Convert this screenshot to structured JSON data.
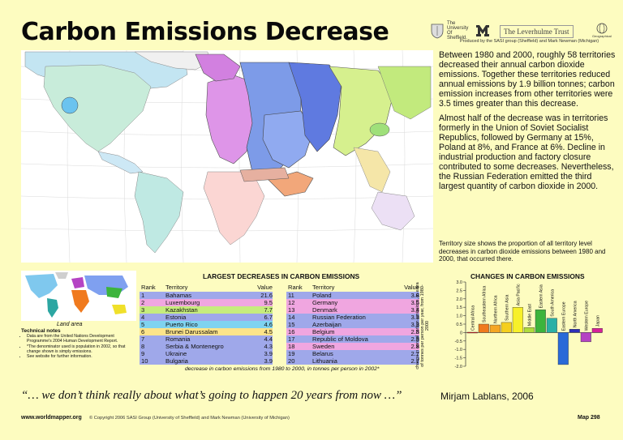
{
  "title": "Carbon Emissions Decrease",
  "logos": {
    "sheffield": "The University Of Sheffield.",
    "leverhulme": "The Leverhulme Trust",
    "geo": "Geographical"
  },
  "credit": "Produced by the SASI group (Sheffield) and Mark Newman (Michigan)",
  "intro": [
    "Between 1980 and 2000, roughly 58 territories decreased their annual carbon dioxide emissions. Together these territories reduced annual emissions by 1.9 billion tonnes; carbon emission increases from other territories were 3.5 times greater than this decrease.",
    "Almost half of the decrease was in territories formerly in the Union of Soviet Socialist Republics, followed by Germany at 15%, Poland at 8%, and France at 6%. Decline in industrial production and factory closure contributed to some decreases. Nevertheless, the Russian Federation emitted the third largest quantity of carbon dioxide in 2000."
  ],
  "territory_note": "Territory size shows the proportion of all territory level decreases in carbon dioxide emissions between 1980 and 2000, that occurred there.",
  "land_area_label": "Land area",
  "tech_notes": {
    "heading": "Technical notes",
    "items": [
      "Data are from the United Nations Development Programme's 2004 Human Development Report.",
      "*The denominator used is population in 2002, so that change shown is simply emissions.",
      "See website for further information."
    ]
  },
  "largest": {
    "title": "LARGEST DECREASES IN CARBON EMISSIONS",
    "headers": [
      "Rank",
      "Territory",
      "Value"
    ],
    "left": [
      {
        "rank": "1",
        "territory": "Bahamas",
        "value": "21.6",
        "color": "#9fa8ea"
      },
      {
        "rank": "2",
        "territory": "Luxembourg",
        "value": "9.5",
        "color": "#f0a6e0"
      },
      {
        "rank": "3",
        "territory": "Kazakhstan",
        "value": "7.7",
        "color": "#c6ec7d"
      },
      {
        "rank": "4",
        "territory": "Estonia",
        "value": "6.7",
        "color": "#9fa8ea"
      },
      {
        "rank": "5",
        "territory": "Puerto Rico",
        "value": "4.6",
        "color": "#7fd3f0"
      },
      {
        "rank": "6",
        "territory": "Brunei Darussalam",
        "value": "4.5",
        "color": "#fde48a"
      },
      {
        "rank": "7",
        "territory": "Romania",
        "value": "4.4",
        "color": "#9fa8ea"
      },
      {
        "rank": "8",
        "territory": "Serbia & Montenegro",
        "value": "4.3",
        "color": "#9fa8ea"
      },
      {
        "rank": "9",
        "territory": "Ukraine",
        "value": "3.9",
        "color": "#9fa8ea"
      },
      {
        "rank": "10",
        "territory": "Bulgaria",
        "value": "3.9",
        "color": "#9fa8ea"
      }
    ],
    "right": [
      {
        "rank": "11",
        "territory": "Poland",
        "value": "3.8",
        "color": "#9fa8ea"
      },
      {
        "rank": "12",
        "territory": "Germany",
        "value": "3.5",
        "color": "#f0a6e0"
      },
      {
        "rank": "13",
        "territory": "Denmark",
        "value": "3.4",
        "color": "#f0a6e0"
      },
      {
        "rank": "14",
        "territory": "Russian Federation",
        "value": "3.3",
        "color": "#9fa8ea"
      },
      {
        "rank": "15",
        "territory": "Azerbaijan",
        "value": "3.3",
        "color": "#9fa8ea"
      },
      {
        "rank": "16",
        "territory": "Belgium",
        "value": "2.8",
        "color": "#f0a6e0"
      },
      {
        "rank": "17",
        "territory": "Republic of Moldova",
        "value": "2.8",
        "color": "#9fa8ea"
      },
      {
        "rank": "18",
        "territory": "Sweden",
        "value": "2.8",
        "color": "#f0a6e0"
      },
      {
        "rank": "19",
        "territory": "Belarus",
        "value": "2.7",
        "color": "#9fa8ea"
      },
      {
        "rank": "20",
        "territory": "Lithuania",
        "value": "2.7",
        "color": "#9fa8ea"
      }
    ],
    "caption": "decrease in carbon emissions from 1980 to 2000, in tonnes per person in 2002*"
  },
  "chart_data": {
    "type": "bar",
    "title": "CHANGES IN CARBON EMISSIONS",
    "ylabel": "change in annual carbon emissions, in extra of tonnes per person per year, from 1980-2000",
    "ylim": [
      -2.0,
      3.0
    ],
    "yticks": [
      "3.0",
      "2.5",
      "2.0",
      "1.5",
      "1.0",
      "0.5",
      "0",
      "-0.5",
      "-1.0",
      "-1.5",
      "-2.0"
    ],
    "categories": [
      "Central Africa",
      "Southeastern Africa",
      "Northern Africa",
      "Southern Asia",
      "Asia Pacific",
      "Middle East",
      "Eastern Asia",
      "South America",
      "Eastern Europe",
      "North America",
      "Western Europe",
      "Japan"
    ],
    "values": [
      0.02,
      0.5,
      0.45,
      0.6,
      1.5,
      0.3,
      1.35,
      0.85,
      -1.9,
      0.2,
      -0.55,
      0.25
    ],
    "colors": [
      "#e8141e",
      "#f07a1e",
      "#f5a623",
      "#f5cf1e",
      "#f7f02a",
      "#b0dc3c",
      "#3cb43c",
      "#2bb0a6",
      "#2a6ad8",
      "#2e2fb8",
      "#b544c4",
      "#d8209a"
    ]
  },
  "quote": "“… we don’t think really about what’s going to happen 20 years from now …”",
  "quote_author": "Mirjam Lablans, 2006",
  "footer": {
    "url": "www.worldmapper.org",
    "copyright": "© Copyright 2006 SASI Group (University of Sheffield) and Mark Newman (University of Michigan)",
    "map": "Map 298"
  }
}
